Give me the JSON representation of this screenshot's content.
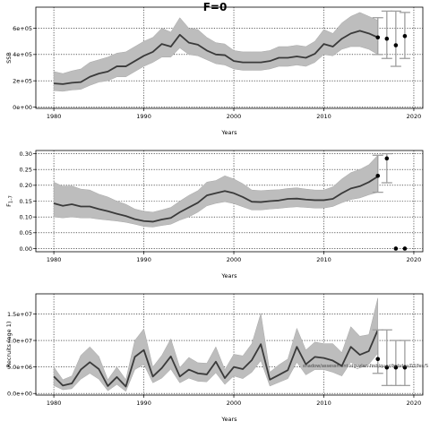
{
  "figure": {
    "title": "F=0"
  },
  "chart_data": [
    {
      "type": "line",
      "xlabel": "Years",
      "ylabel": "SSB",
      "xlim": [
        1978,
        2021
      ],
      "ylim": [
        -10000,
        760000
      ],
      "xticks": [
        1980,
        1990,
        2000,
        2010,
        2020
      ],
      "yticks": [
        0,
        200000,
        400000,
        600000
      ],
      "ytick_labels": [
        "0e+00",
        "2e+05",
        "4e+05",
        "6e+05"
      ],
      "grid": "dotted at ticks",
      "series": [
        {
          "style": "median-line-with-band",
          "x": [
            1980,
            1981,
            1982,
            1983,
            1984,
            1985,
            1986,
            1987,
            1988,
            1989,
            1990,
            1991,
            1992,
            1993,
            1994,
            1995,
            1996,
            1997,
            1998,
            1999,
            2000,
            2001,
            2002,
            2003,
            2004,
            2005,
            2006,
            2007,
            2008,
            2009,
            2010,
            2011,
            2012,
            2013,
            2014,
            2015,
            2016
          ],
          "median": [
            180000,
            175000,
            185000,
            190000,
            230000,
            255000,
            270000,
            310000,
            310000,
            350000,
            390000,
            420000,
            480000,
            460000,
            550000,
            490000,
            475000,
            430000,
            400000,
            395000,
            350000,
            340000,
            340000,
            340000,
            350000,
            375000,
            375000,
            385000,
            375000,
            405000,
            480000,
            460000,
            520000,
            560000,
            580000,
            560000,
            530000
          ],
          "lower": [
            125000,
            120000,
            130000,
            135000,
            165000,
            190000,
            200000,
            230000,
            230000,
            270000,
            310000,
            340000,
            380000,
            380000,
            450000,
            400000,
            390000,
            360000,
            330000,
            320000,
            290000,
            280000,
            280000,
            280000,
            290000,
            310000,
            310000,
            320000,
            310000,
            340000,
            400000,
            390000,
            440000,
            460000,
            460000,
            440000,
            400000
          ],
          "upper": [
            270000,
            255000,
            275000,
            290000,
            340000,
            360000,
            380000,
            410000,
            420000,
            460000,
            500000,
            530000,
            600000,
            570000,
            680000,
            600000,
            590000,
            530000,
            490000,
            480000,
            430000,
            420000,
            420000,
            420000,
            430000,
            460000,
            460000,
            470000,
            460000,
            500000,
            590000,
            560000,
            640000,
            690000,
            720000,
            690000,
            660000
          ]
        }
      ],
      "projections": {
        "x": [
          2016,
          2017,
          2018,
          2019
        ],
        "median": [
          530000,
          520000,
          470000,
          540000
        ],
        "lower": [
          400000,
          370000,
          310000,
          370000
        ],
        "upper": [
          680000,
          730000,
          730000,
          720000
        ]
      }
    },
    {
      "type": "line",
      "xlabel": "Years",
      "ylabel": "F",
      "ylabel_subscript": "1–7",
      "xlim": [
        1978,
        2021
      ],
      "ylim": [
        -0.01,
        0.31
      ],
      "xticks": [
        1980,
        1990,
        2000,
        2010,
        2020
      ],
      "yticks": [
        0.0,
        0.05,
        0.1,
        0.15,
        0.2,
        0.25,
        0.3
      ],
      "ytick_labels": [
        "0.00",
        "0.05",
        "0.10",
        "0.15",
        "0.20",
        "0.25",
        "0.30"
      ],
      "grid": "dotted at ticks",
      "series": [
        {
          "style": "median-line-with-band",
          "x": [
            1980,
            1981,
            1982,
            1983,
            1984,
            1985,
            1986,
            1987,
            1988,
            1989,
            1990,
            1991,
            1992,
            1993,
            1994,
            1995,
            1996,
            1997,
            1998,
            1999,
            2000,
            2001,
            2002,
            2003,
            2004,
            2005,
            2006,
            2007,
            2008,
            2009,
            2010,
            2011,
            2012,
            2013,
            2014,
            2015,
            2016
          ],
          "median": [
            0.143,
            0.135,
            0.14,
            0.133,
            0.133,
            0.125,
            0.118,
            0.11,
            0.103,
            0.093,
            0.087,
            0.085,
            0.092,
            0.097,
            0.115,
            0.13,
            0.145,
            0.168,
            0.175,
            0.182,
            0.175,
            0.163,
            0.148,
            0.147,
            0.15,
            0.152,
            0.157,
            0.158,
            0.155,
            0.153,
            0.153,
            0.157,
            0.175,
            0.19,
            0.197,
            0.21,
            0.228
          ],
          "lower": [
            0.1,
            0.097,
            0.1,
            0.097,
            0.097,
            0.093,
            0.09,
            0.087,
            0.083,
            0.077,
            0.07,
            0.068,
            0.073,
            0.077,
            0.09,
            0.1,
            0.115,
            0.135,
            0.143,
            0.148,
            0.142,
            0.132,
            0.122,
            0.122,
            0.125,
            0.127,
            0.13,
            0.132,
            0.13,
            0.128,
            0.128,
            0.133,
            0.145,
            0.155,
            0.16,
            0.17,
            0.178
          ],
          "upper": [
            0.21,
            0.197,
            0.198,
            0.188,
            0.185,
            0.172,
            0.163,
            0.15,
            0.14,
            0.125,
            0.118,
            0.115,
            0.122,
            0.13,
            0.15,
            0.168,
            0.183,
            0.21,
            0.215,
            0.23,
            0.22,
            0.205,
            0.185,
            0.183,
            0.185,
            0.186,
            0.19,
            0.192,
            0.188,
            0.185,
            0.185,
            0.195,
            0.22,
            0.24,
            0.25,
            0.265,
            0.295
          ]
        }
      ],
      "projections": {
        "x": [
          2016,
          2017,
          2018,
          2019
        ],
        "median": [
          0.23,
          0.285,
          0.0,
          0.0
        ],
        "lower": [
          0.178,
          0.208,
          null,
          null
        ],
        "upper": [
          0.295,
          0.3,
          null,
          null
        ]
      }
    },
    {
      "type": "line",
      "xlabel": "Years",
      "ylabel": "Recruits (age 1)",
      "xlim": [
        1978,
        2021
      ],
      "ylim": [
        -300000,
        18800000
      ],
      "xticks": [
        1980,
        1990,
        2000,
        2010,
        2020
      ],
      "yticks": [
        0,
        5000000,
        10000000,
        15000000
      ],
      "ytick_labels": [
        "0.0e+00",
        "5.0e+06",
        "1.0e+07",
        "1.5e+07"
      ],
      "grid": "dotted at ticks",
      "annotation": "shadow/assessment.stg_vlan-fmb/quar/fmbdes/02/fes/S",
      "series": [
        {
          "style": "median-line-with-band",
          "x": [
            1980,
            1981,
            1982,
            1983,
            1984,
            1985,
            1986,
            1987,
            1988,
            1989,
            1990,
            1991,
            1992,
            1993,
            1994,
            1995,
            1996,
            1997,
            1998,
            1999,
            2000,
            2001,
            2002,
            2003,
            2004,
            2005,
            2006,
            2007,
            2008,
            2009,
            2010,
            2011,
            2012,
            2013,
            2014,
            2015,
            2016
          ],
          "median": [
            3200000,
            1500000,
            1900000,
            4500000,
            5900000,
            4600000,
            1400000,
            3100000,
            1300000,
            6900000,
            8200000,
            3200000,
            4800000,
            7000000,
            3200000,
            4500000,
            3800000,
            3600000,
            6000000,
            2900000,
            5000000,
            4600000,
            6300000,
            9300000,
            2600000,
            3500000,
            4400000,
            8800000,
            5500000,
            6900000,
            6700000,
            6200000,
            5200000,
            8800000,
            7300000,
            8000000,
            12000000
          ],
          "lower": [
            1500000,
            700000,
            900000,
            2700000,
            3800000,
            2700000,
            500000,
            1700000,
            400000,
            4500000,
            5500000,
            2000000,
            2900000,
            4600000,
            2000000,
            2900000,
            2300000,
            2200000,
            3900000,
            1700000,
            3300000,
            2800000,
            4000000,
            6200000,
            1400000,
            2100000,
            2800000,
            5900000,
            3500000,
            4500000,
            4500000,
            4000000,
            3300000,
            5900000,
            4800000,
            5500000,
            7600000
          ],
          "upper": [
            5000000,
            2600000,
            3300000,
            7200000,
            8800000,
            7000000,
            2600000,
            5000000,
            2600000,
            10000000,
            12200000,
            5000000,
            7200000,
            10300000,
            4900000,
            6800000,
            5800000,
            5700000,
            8800000,
            4500000,
            7400000,
            7100000,
            9400000,
            15100000,
            4000000,
            5400000,
            6500000,
            12300000,
            8200000,
            9700000,
            9400000,
            9400000,
            7700000,
            12600000,
            10800000,
            11100000,
            18000000
          ]
        }
      ],
      "projections": {
        "x": [
          2016,
          2017,
          2018,
          2019
        ],
        "median": [
          6500000,
          4900000,
          4900000,
          4900000
        ],
        "lower": [
          3800000,
          1500000,
          1500000,
          1500000
        ],
        "upper": [
          12000000,
          12000000,
          10000000,
          10000000
        ]
      }
    }
  ]
}
